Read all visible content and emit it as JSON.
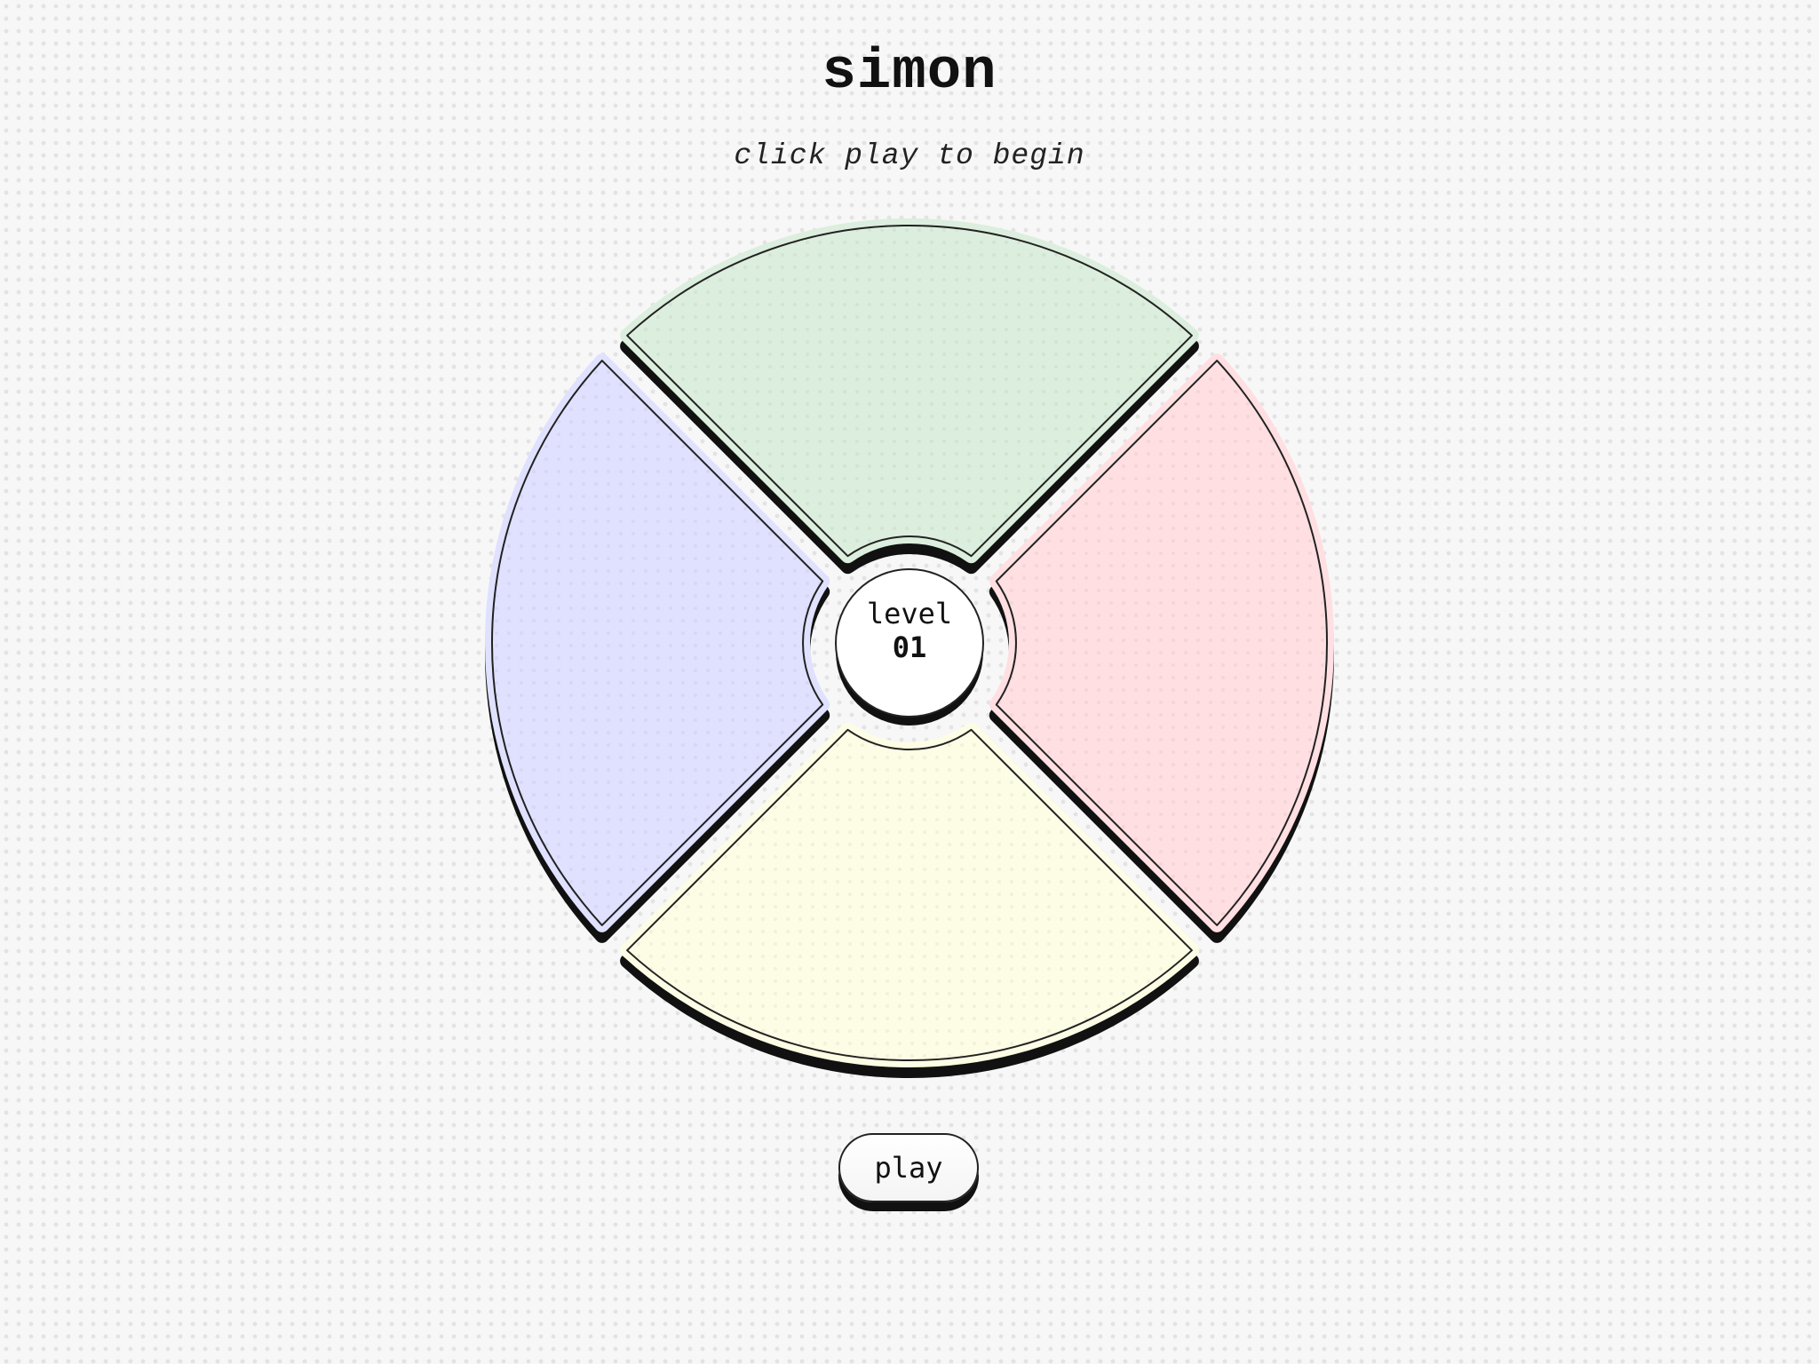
{
  "header": {
    "title": "simon",
    "subtitle": "click play to begin"
  },
  "board": {
    "level_label": "level",
    "level_value": "01",
    "quadrants": [
      {
        "name": "green",
        "color": "#dceedd"
      },
      {
        "name": "red",
        "color": "#ffdfe2"
      },
      {
        "name": "yellow",
        "color": "#fdfde5"
      },
      {
        "name": "blue",
        "color": "#dfe1ff"
      }
    ]
  },
  "controls": {
    "play_label": "play"
  }
}
